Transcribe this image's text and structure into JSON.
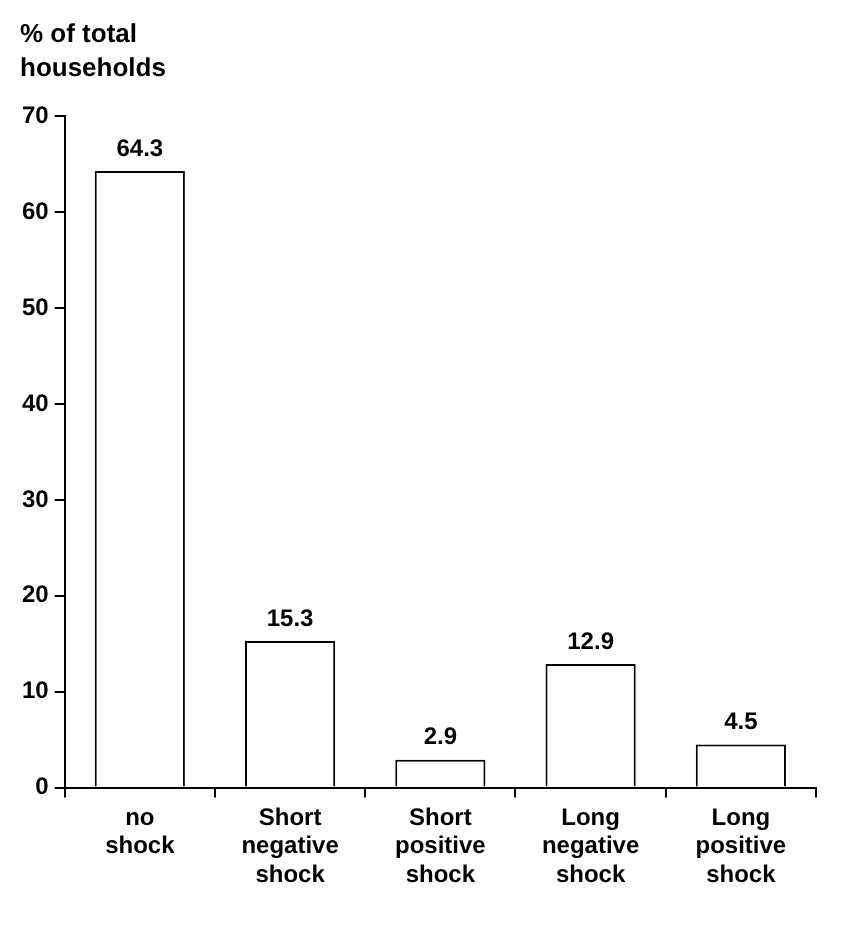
{
  "chart_data": {
    "type": "bar",
    "ylabel": "% of total households",
    "categories": [
      "no shock",
      "Short negative shock",
      "Short positive shock",
      "Long negative shock",
      "Long positive shock"
    ],
    "values": [
      64.3,
      15.3,
      2.9,
      12.9,
      4.5
    ],
    "color": "#ffffff",
    "ylim": [
      0,
      70
    ],
    "yticks": [
      0,
      10,
      20,
      30,
      40,
      50,
      60,
      70
    ],
    "grid": false,
    "legend": false,
    "data_labels": true
  }
}
